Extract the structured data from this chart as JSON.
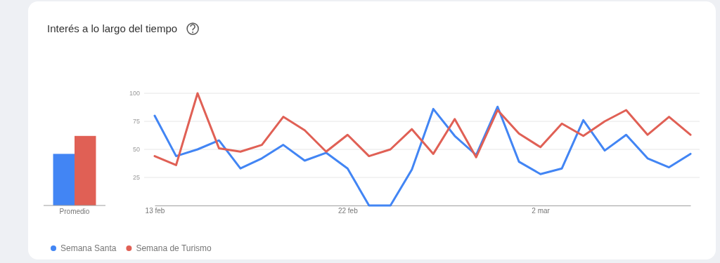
{
  "chart_data": [
    {
      "type": "bar",
      "title": "Interés a lo largo del tiempo",
      "categories": [
        "Promedio"
      ],
      "ylim": [
        0,
        100
      ],
      "tick_labels": "x",
      "series": [
        {
          "color": "#4285f4",
          "values": [
            46
          ]
        },
        {
          "color": "#e06055",
          "values": [
            62
          ]
        }
      ]
    },
    {
      "type": "line",
      "x": [
        "--02-13",
        "--02-14",
        "--02-15",
        "--02-16",
        "--02-17",
        "--02-18",
        "--02-19",
        "--02-20",
        "--02-21",
        "--02-22",
        "--02-23",
        "--02-24",
        "--02-25",
        "--02-26",
        "--02-27",
        "--02-28",
        "--02-29",
        "--03-01",
        "--03-02",
        "--03-03",
        "--03-04",
        "--03-05",
        "--03-06",
        "--03-07",
        "--03-08",
        "--03-09"
      ],
      "xlim": [
        "--02-13",
        "--03-09"
      ],
      "ylim": [
        0,
        100
      ],
      "xticks": [
        {
          "value": "--02-13",
          "label": "13 feb"
        },
        {
          "value": "--02-22",
          "label": "22 feb"
        },
        {
          "value": "--03-02",
          "label": "2 mar"
        }
      ],
      "yticks": [
        {
          "value": 25,
          "label": "25"
        },
        {
          "value": 50,
          "label": "50"
        },
        {
          "value": 75,
          "label": "75"
        },
        {
          "value": 100,
          "label": "100"
        }
      ],
      "grid": "y",
      "legend": "bottom",
      "marker": "none",
      "series": [
        {
          "name": "Semana Santa",
          "color": "#4285f4",
          "values": [
            80,
            44,
            50,
            58,
            33,
            42,
            54,
            40,
            47,
            33,
            0,
            0,
            32,
            86,
            62,
            45,
            88,
            39,
            28,
            33,
            76,
            49,
            63,
            42,
            34,
            46
          ]
        },
        {
          "name": "Semana de Turismo",
          "color": "#e06055",
          "values": [
            44,
            36,
            100,
            51,
            48,
            54,
            79,
            67,
            48,
            63,
            44,
            50,
            68,
            46,
            77,
            43,
            85,
            64,
            52,
            73,
            62,
            75,
            85,
            63,
            79,
            63
          ]
        }
      ]
    }
  ]
}
